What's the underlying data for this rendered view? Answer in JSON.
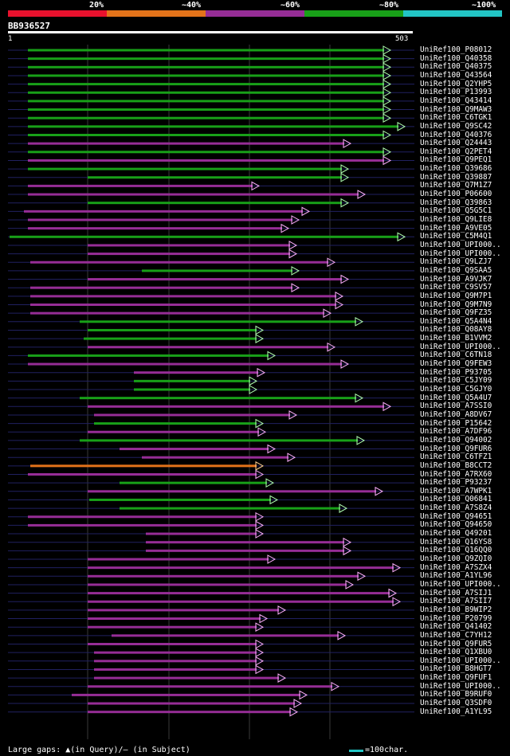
{
  "legend": {
    "labels": [
      "20%",
      "~40%",
      "~60%",
      "~80%",
      "~100%"
    ],
    "colors": [
      "#e8112d",
      "#e3731a",
      "#962d96",
      "#18a018",
      "#22c5c5"
    ]
  },
  "query": {
    "id": "BB936527",
    "start": "1",
    "end": "503"
  },
  "footer": {
    "gaps_text": "Large gaps: ▲(in Query)/– (in Subject)",
    "scale_text": "=100char."
  },
  "hits": [
    {
      "label": "UniRef100_P08012",
      "color": "green",
      "start": 35,
      "end": 490
    },
    {
      "label": "UniRef100_Q40358",
      "color": "green",
      "start": 35,
      "end": 490
    },
    {
      "label": "UniRef100_Q40375",
      "color": "green",
      "start": 35,
      "end": 490
    },
    {
      "label": "UniRef100_Q43564",
      "color": "green",
      "start": 35,
      "end": 490
    },
    {
      "label": "UniRef100_Q2YHP5",
      "color": "green",
      "start": 35,
      "end": 490
    },
    {
      "label": "UniRef100_P13993",
      "color": "green",
      "start": 35,
      "end": 490
    },
    {
      "label": "UniRef100_Q43414",
      "color": "green",
      "start": 35,
      "end": 490
    },
    {
      "label": "UniRef100_Q9MAW3",
      "color": "green",
      "start": 35,
      "end": 490
    },
    {
      "label": "UniRef100_C6TGK1",
      "color": "green",
      "start": 35,
      "end": 490
    },
    {
      "label": "UniRef100_Q9SC42",
      "color": "green",
      "start": 35,
      "end": 508
    },
    {
      "label": "UniRef100_Q40376",
      "color": "green",
      "start": 35,
      "end": 490
    },
    {
      "label": "UniRef100_Q24443",
      "color": "magenta",
      "start": 35,
      "end": 440
    },
    {
      "label": "UniRef100_Q2PET4",
      "color": "green",
      "start": 35,
      "end": 490
    },
    {
      "label": "UniRef100_Q9PEQ1",
      "color": "magenta",
      "start": 35,
      "end": 490
    },
    {
      "label": "UniRef100_Q39686",
      "color": "green",
      "start": 35,
      "end": 437
    },
    {
      "label": "UniRef100_Q39887",
      "color": "green",
      "start": 110,
      "end": 437
    },
    {
      "label": "UniRef100_Q7M1Z7",
      "color": "magenta",
      "start": 35,
      "end": 325
    },
    {
      "label": "UniRef100_P06600",
      "color": "magenta",
      "start": 35,
      "end": 458
    },
    {
      "label": "UniRef100_Q39863",
      "color": "green",
      "start": 110,
      "end": 437
    },
    {
      "label": "UniRef100_Q5G5C1",
      "color": "magenta",
      "start": 30,
      "end": 388
    },
    {
      "label": "UniRef100_Q9LIE8",
      "color": "magenta",
      "start": 35,
      "end": 375
    },
    {
      "label": "UniRef100_A9VE05",
      "color": "magenta",
      "start": 35,
      "end": 362
    },
    {
      "label": "UniRef100_C5M4Q1",
      "color": "green",
      "start": 12,
      "end": 508
    },
    {
      "label": "UniRef100_UPI000..",
      "color": "magenta",
      "start": 110,
      "end": 372
    },
    {
      "label": "UniRef100_UPI000..",
      "color": "magenta",
      "start": 110,
      "end": 372
    },
    {
      "label": "UniRef100_Q9LZJ7",
      "color": "magenta",
      "start": 38,
      "end": 420
    },
    {
      "label": "UniRef100_Q9SAA5",
      "color": "green",
      "start": 178,
      "end": 375
    },
    {
      "label": "UniRef100_A9VJK7",
      "color": "magenta",
      "start": 110,
      "end": 437
    },
    {
      "label": "UniRef100_C9SV57",
      "color": "magenta",
      "start": 38,
      "end": 375
    },
    {
      "label": "UniRef100_Q9M7P1",
      "color": "magenta",
      "start": 38,
      "end": 430
    },
    {
      "label": "UniRef100_Q9M7N9",
      "color": "magenta",
      "start": 38,
      "end": 430
    },
    {
      "label": "UniRef100_Q9FZ35",
      "color": "magenta",
      "start": 38,
      "end": 415
    },
    {
      "label": "UniRef100_Q5A4N4",
      "color": "green",
      "start": 100,
      "end": 455
    },
    {
      "label": "UniRef100_Q08AY8",
      "color": "green",
      "start": 110,
      "end": 330
    },
    {
      "label": "UniRef100_B1VVM2",
      "color": "green",
      "start": 105,
      "end": 330
    },
    {
      "label": "UniRef100_UPI000..",
      "color": "magenta",
      "start": 110,
      "end": 420
    },
    {
      "label": "UniRef100_C6TN18",
      "color": "green",
      "start": 35,
      "end": 345
    },
    {
      "label": "UniRef100_Q9FEW3",
      "color": "magenta",
      "start": 35,
      "end": 437
    },
    {
      "label": "UniRef100_P93705",
      "color": "magenta",
      "start": 168,
      "end": 332
    },
    {
      "label": "UniRef100_C5JY09",
      "color": "green",
      "start": 168,
      "end": 322
    },
    {
      "label": "UniRef100_C5GJY0",
      "color": "green",
      "start": 168,
      "end": 322
    },
    {
      "label": "UniRef100_Q5A4U7",
      "color": "green",
      "start": 100,
      "end": 455
    },
    {
      "label": "UniRef100_A7SSI0",
      "color": "magenta",
      "start": 110,
      "end": 490
    },
    {
      "label": "UniRef100_A8DV67",
      "color": "magenta",
      "start": 118,
      "end": 372
    },
    {
      "label": "UniRef100_P15642",
      "color": "green",
      "start": 118,
      "end": 330
    },
    {
      "label": "UniRef100_A7DF96",
      "color": "magenta",
      "start": 110,
      "end": 333
    },
    {
      "label": "UniRef100_Q94002",
      "color": "green",
      "start": 100,
      "end": 457
    },
    {
      "label": "UniRef100_Q9FUR6",
      "color": "magenta",
      "start": 150,
      "end": 345
    },
    {
      "label": "UniRef100_C6TFZ1",
      "color": "magenta",
      "start": 178,
      "end": 370
    },
    {
      "label": "UniRef100_B8CCT2",
      "color": "orange",
      "start": 38,
      "end": 330
    },
    {
      "label": "UniRef100_A7RX60",
      "color": "magenta",
      "start": 35,
      "end": 330
    },
    {
      "label": "UniRef100_P93237",
      "color": "green",
      "start": 150,
      "end": 343
    },
    {
      "label": "UniRef100_A7WPK1",
      "color": "magenta",
      "start": 110,
      "end": 480
    },
    {
      "label": "UniRef100_Q06841",
      "color": "green",
      "start": 112,
      "end": 348
    },
    {
      "label": "UniRef100_A7S8Z4",
      "color": "green",
      "start": 150,
      "end": 435
    },
    {
      "label": "UniRef100_Q94651",
      "color": "magenta",
      "start": 35,
      "end": 330
    },
    {
      "label": "UniRef100_Q94650",
      "color": "magenta",
      "start": 35,
      "end": 330
    },
    {
      "label": "UniRef100_Q49201",
      "color": "magenta",
      "start": 183,
      "end": 330
    },
    {
      "label": "UniRef100_Q16YS8",
      "color": "magenta",
      "start": 183,
      "end": 440
    },
    {
      "label": "UniRef100_Q16QQ0",
      "color": "magenta",
      "start": 183,
      "end": 440
    },
    {
      "label": "UniRef100_Q9ZQI0",
      "color": "magenta",
      "start": 110,
      "end": 345
    },
    {
      "label": "UniRef100_A7SZX4",
      "color": "magenta",
      "start": 110,
      "end": 502
    },
    {
      "label": "UniRef100_A1YL96",
      "color": "magenta",
      "start": 110,
      "end": 458
    },
    {
      "label": "UniRef100_UPI000..",
      "color": "magenta",
      "start": 110,
      "end": 443
    },
    {
      "label": "UniRef100_A7SIJ1",
      "color": "magenta",
      "start": 110,
      "end": 497
    },
    {
      "label": "UniRef100_A7SII7",
      "color": "magenta",
      "start": 110,
      "end": 502
    },
    {
      "label": "UniRef100_B9WIP2",
      "color": "magenta",
      "start": 110,
      "end": 358
    },
    {
      "label": "UniRef100_P20799",
      "color": "magenta",
      "start": 110,
      "end": 335
    },
    {
      "label": "UniRef100_Q41402",
      "color": "magenta",
      "start": 110,
      "end": 330
    },
    {
      "label": "UniRef100_C7YH12",
      "color": "magenta",
      "start": 140,
      "end": 433
    },
    {
      "label": "UniRef100_Q9FUR5",
      "color": "magenta",
      "start": 110,
      "end": 330
    },
    {
      "label": "UniRef100_Q1XBU0",
      "color": "magenta",
      "start": 118,
      "end": 330
    },
    {
      "label": "UniRef100_UPI000..",
      "color": "magenta",
      "start": 118,
      "end": 330
    },
    {
      "label": "UniRef100_B8HGT7",
      "color": "magenta",
      "start": 118,
      "end": 330
    },
    {
      "label": "UniRef100_Q9FUF1",
      "color": "magenta",
      "start": 118,
      "end": 358
    },
    {
      "label": "UniRef100_UPI000..",
      "color": "magenta",
      "start": 110,
      "end": 425
    },
    {
      "label": "UniRef100_B9RUF0",
      "color": "magenta",
      "start": 90,
      "end": 385
    },
    {
      "label": "UniRef100_Q3SDF0",
      "color": "magenta",
      "start": 110,
      "end": 378
    },
    {
      "label": "UniRef100_A1YL95",
      "color": "magenta",
      "start": 110,
      "end": 373
    }
  ]
}
